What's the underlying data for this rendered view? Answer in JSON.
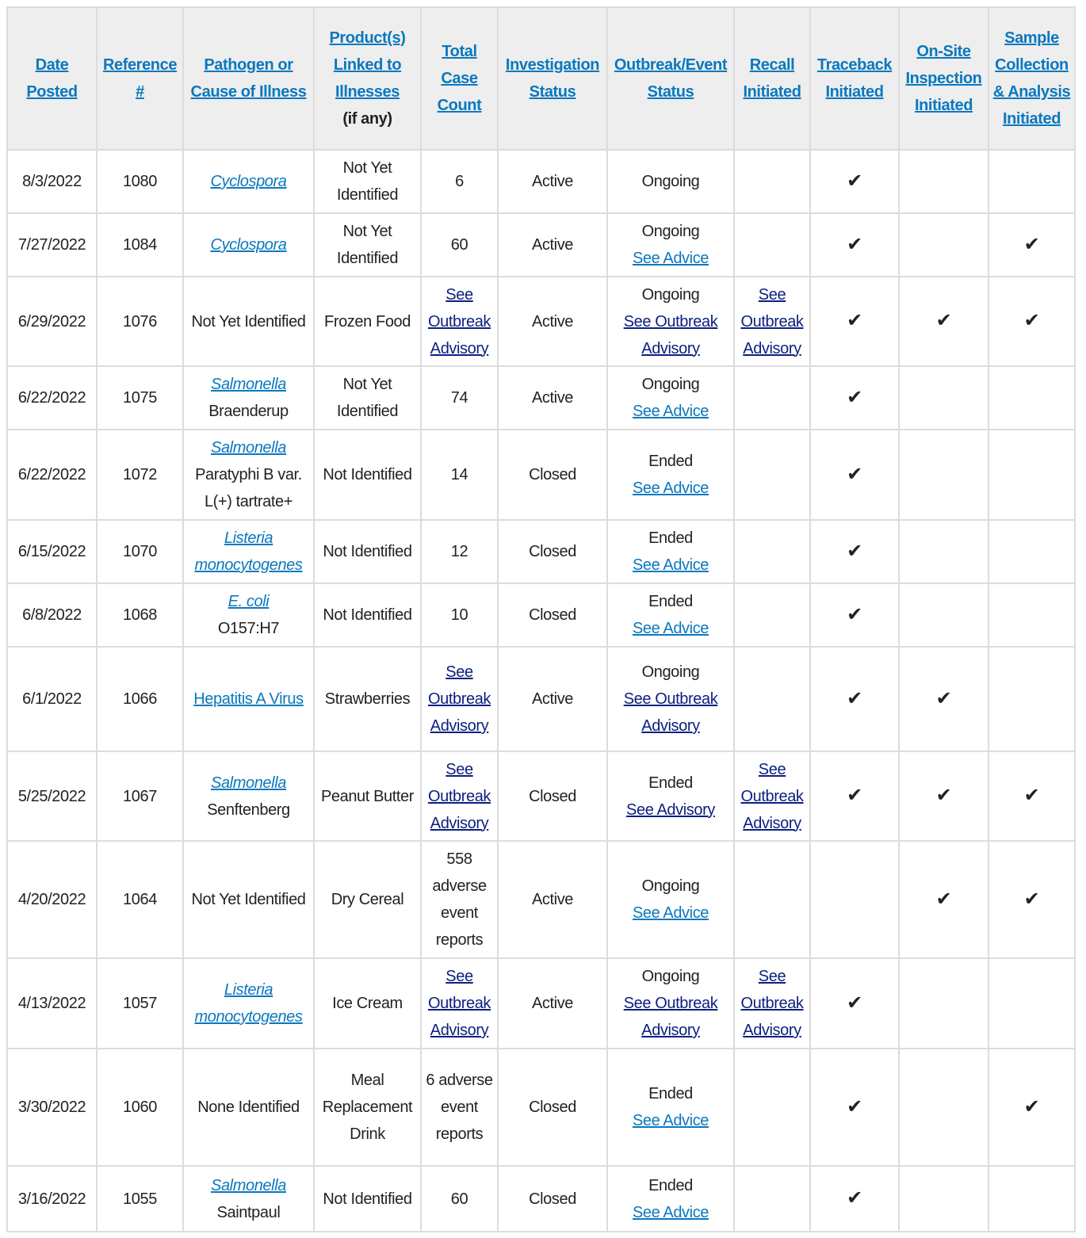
{
  "colors": {
    "header_link": "#0a78be",
    "navy_link": "#0b1f80",
    "header_bg": "#eeeeee",
    "border": "#dcdcdc"
  },
  "check_icon": "✔",
  "headers": [
    {
      "label": "Date Posted"
    },
    {
      "label": "Reference #"
    },
    {
      "label": "Pathogen or Cause of Illness"
    },
    {
      "label": "Product(s) Linked to Illnesses",
      "note": "(if any)"
    },
    {
      "label": "Total Case Count"
    },
    {
      "label": "Investigation Status"
    },
    {
      "label": "Outbreak/Event Status"
    },
    {
      "label": "Recall Initiated"
    },
    {
      "label": "Traceback Initiated"
    },
    {
      "label": "On-Site Inspection Initiated"
    },
    {
      "label": "Sample Collection & Analysis Initiated"
    }
  ],
  "rows": [
    {
      "date": "8/3/2022",
      "ref": "1080",
      "pathogen": [
        {
          "t": "Cyclospora",
          "s": "italic-link"
        }
      ],
      "product": [
        {
          "t": "Not Yet Identified",
          "s": "plain"
        }
      ],
      "count": [
        {
          "t": "6",
          "s": "plain"
        }
      ],
      "investigation": "Active",
      "status": [
        {
          "t": "Ongoing",
          "s": "plain"
        }
      ],
      "recall": [],
      "traceback": true,
      "onsite": false,
      "sample": false
    },
    {
      "date": "7/27/2022",
      "ref": "1084",
      "pathogen": [
        {
          "t": "Cyclospora",
          "s": "italic-link"
        }
      ],
      "product": [
        {
          "t": "Not Yet Identified",
          "s": "plain"
        }
      ],
      "count": [
        {
          "t": "60",
          "s": "plain"
        }
      ],
      "investigation": "Active",
      "status": [
        {
          "t": "Ongoing",
          "s": "plain"
        },
        {
          "t": "See Advice",
          "s": "link"
        }
      ],
      "recall": [],
      "traceback": true,
      "onsite": false,
      "sample": true
    },
    {
      "date": "6/29/2022",
      "ref": "1076",
      "pathogen": [
        {
          "t": "Not Yet Identified",
          "s": "plain"
        }
      ],
      "product": [
        {
          "t": "Frozen Food",
          "s": "plain"
        }
      ],
      "count": [
        {
          "t": "See Outbreak Advisory",
          "s": "navy"
        }
      ],
      "investigation": "Active",
      "status": [
        {
          "t": "Ongoing",
          "s": "plain"
        },
        {
          "t": "See Outbreak Advisory",
          "s": "navy"
        }
      ],
      "recall": [
        {
          "t": "See Outbreak Advisory",
          "s": "navy"
        }
      ],
      "traceback": true,
      "onsite": true,
      "sample": true
    },
    {
      "date": "6/22/2022",
      "ref": "1075",
      "pathogen": [
        {
          "t": "Salmonella",
          "s": "italic-link"
        },
        {
          "t": "Braenderup",
          "s": "plain"
        }
      ],
      "product": [
        {
          "t": "Not Yet Identified",
          "s": "plain"
        }
      ],
      "count": [
        {
          "t": "74",
          "s": "plain"
        }
      ],
      "investigation": "Active",
      "status": [
        {
          "t": "Ongoing",
          "s": "plain"
        },
        {
          "t": "See Advice",
          "s": "link"
        }
      ],
      "recall": [],
      "traceback": true,
      "onsite": false,
      "sample": false
    },
    {
      "date": "6/22/2022",
      "ref": "1072",
      "pathogen": [
        {
          "t": "Salmonella",
          "s": "italic-link"
        },
        {
          "t": "Paratyphi B var.",
          "s": "plain"
        },
        {
          "t": "L(+) tartrate+",
          "s": "plain"
        }
      ],
      "product": [
        {
          "t": "Not Identified",
          "s": "plain"
        }
      ],
      "count": [
        {
          "t": "14",
          "s": "plain"
        }
      ],
      "investigation": "Closed",
      "status": [
        {
          "t": "Ended",
          "s": "plain"
        },
        {
          "t": "See Advice",
          "s": "link"
        }
      ],
      "recall": [],
      "traceback": true,
      "onsite": false,
      "sample": false
    },
    {
      "date": "6/15/2022",
      "ref": "1070",
      "pathogen": [
        {
          "t": "Listeria monocytogenes",
          "s": "italic-link"
        }
      ],
      "product": [
        {
          "t": "Not Identified",
          "s": "plain"
        }
      ],
      "count": [
        {
          "t": "12",
          "s": "plain"
        }
      ],
      "investigation": "Closed",
      "status": [
        {
          "t": "Ended",
          "s": "plain"
        },
        {
          "t": "See Advice",
          "s": "link"
        }
      ],
      "recall": [],
      "traceback": true,
      "onsite": false,
      "sample": false
    },
    {
      "date": "6/8/2022",
      "ref": "1068",
      "pathogen": [
        {
          "t": "E. coli",
          "s": "italic-link"
        },
        {
          "t": "O157:H7",
          "s": "plain"
        }
      ],
      "product": [
        {
          "t": "Not Identified",
          "s": "plain"
        }
      ],
      "count": [
        {
          "t": "10",
          "s": "plain"
        }
      ],
      "investigation": "Closed",
      "status": [
        {
          "t": "Ended",
          "s": "plain"
        },
        {
          "t": "See Advice",
          "s": "link"
        }
      ],
      "recall": [],
      "traceback": true,
      "onsite": false,
      "sample": false
    },
    {
      "date": "6/1/2022",
      "ref": "1066",
      "pathogen": [
        {
          "t": "Hepatitis A Virus",
          "s": "link"
        }
      ],
      "product": [
        {
          "t": "Strawberries",
          "s": "plain"
        }
      ],
      "count": [
        {
          "t": "See Outbreak Advisory",
          "s": "navy"
        }
      ],
      "investigation": "Active",
      "status": [
        {
          "t": "Ongoing",
          "s": "plain"
        },
        {
          "t": "See Outbreak Advisory",
          "s": "navy"
        }
      ],
      "recall": [],
      "traceback": true,
      "onsite": true,
      "sample": false
    },
    {
      "date": "5/25/2022",
      "ref": "1067",
      "pathogen": [
        {
          "t": "Salmonella",
          "s": "italic-link"
        },
        {
          "t": "Senftenberg",
          "s": "plain"
        }
      ],
      "product": [
        {
          "t": "Peanut Butter",
          "s": "plain"
        }
      ],
      "count": [
        {
          "t": "See Outbreak Advisory",
          "s": "navy"
        }
      ],
      "investigation": "Closed",
      "status": [
        {
          "t": "Ended",
          "s": "plain"
        },
        {
          "t": "See Advisory",
          "s": "navy"
        }
      ],
      "recall": [
        {
          "t": "See Outbreak Advisory",
          "s": "navy"
        }
      ],
      "traceback": true,
      "onsite": true,
      "sample": true
    },
    {
      "date": "4/20/2022",
      "ref": "1064",
      "pathogen": [
        {
          "t": "Not Yet Identified",
          "s": "plain"
        }
      ],
      "product": [
        {
          "t": "Dry Cereal",
          "s": "plain"
        }
      ],
      "count": [
        {
          "t": "558 adverse event reports",
          "s": "plain"
        }
      ],
      "investigation": "Active",
      "status": [
        {
          "t": "Ongoing",
          "s": "plain"
        },
        {
          "t": "See Advice",
          "s": "link"
        }
      ],
      "recall": [],
      "traceback": false,
      "onsite": true,
      "sample": true
    },
    {
      "date": "4/13/2022",
      "ref": "1057",
      "pathogen": [
        {
          "t": "Listeria monocytogenes",
          "s": "italic-link"
        }
      ],
      "product": [
        {
          "t": "Ice Cream",
          "s": "plain"
        }
      ],
      "count": [
        {
          "t": "See Outbreak Advisory",
          "s": "navy"
        }
      ],
      "investigation": "Active",
      "status": [
        {
          "t": "Ongoing",
          "s": "plain"
        },
        {
          "t": "See Outbreak Advisory",
          "s": "navy"
        }
      ],
      "recall": [
        {
          "t": "See Outbreak Advisory",
          "s": "navy"
        }
      ],
      "traceback": true,
      "onsite": false,
      "sample": false
    },
    {
      "date": "3/30/2022",
      "ref": "1060",
      "pathogen": [
        {
          "t": "None Identified",
          "s": "plain"
        }
      ],
      "product": [
        {
          "t": "Meal Replacement Drink",
          "s": "plain"
        }
      ],
      "count": [
        {
          "t": "6 adverse event reports",
          "s": "plain"
        }
      ],
      "investigation": "Closed",
      "status": [
        {
          "t": "Ended",
          "s": "plain"
        },
        {
          "t": "See Advice",
          "s": "link"
        }
      ],
      "recall": [],
      "traceback": true,
      "onsite": false,
      "sample": true
    },
    {
      "date": "3/16/2022",
      "ref": "1055",
      "pathogen": [
        {
          "t": "Salmonella",
          "s": "italic-link"
        },
        {
          "t": "Saintpaul",
          "s": "plain"
        }
      ],
      "product": [
        {
          "t": "Not Identified",
          "s": "plain"
        }
      ],
      "count": [
        {
          "t": "60",
          "s": "plain"
        }
      ],
      "investigation": "Closed",
      "status": [
        {
          "t": "Ended",
          "s": "plain"
        },
        {
          "t": "See Advice",
          "s": "link"
        }
      ],
      "recall": [],
      "traceback": true,
      "onsite": false,
      "sample": false
    }
  ]
}
